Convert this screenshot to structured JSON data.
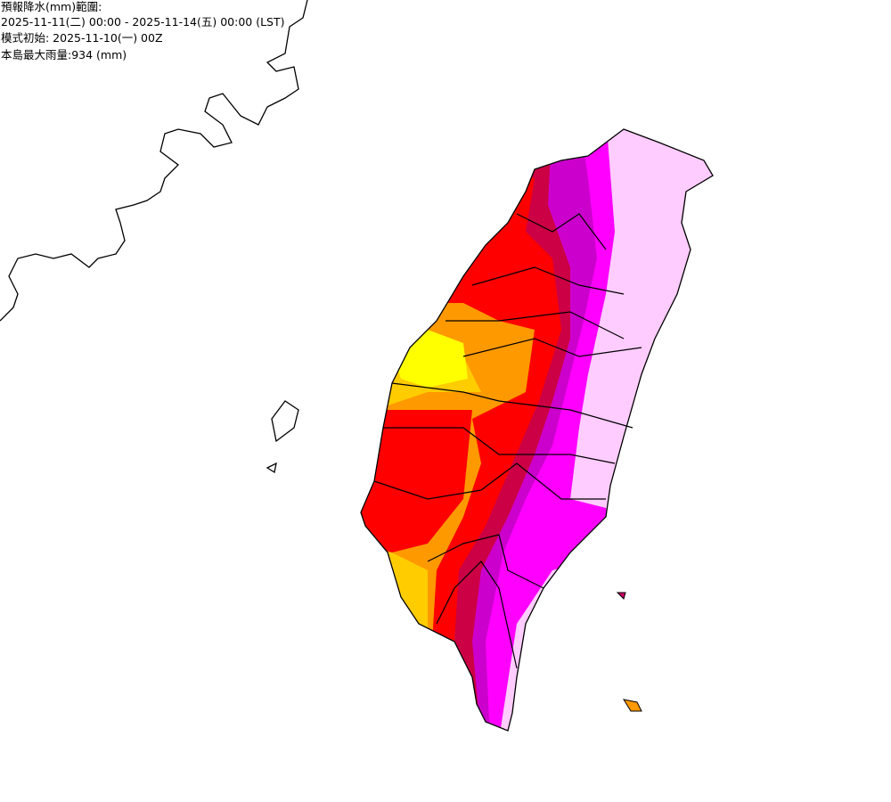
{
  "header": {
    "lines": [
      "預報降水(mm)範圍:",
      "2025-11-11(二) 00:00 - 2025-11-14(五) 00:00 (LST)",
      "模式初始: 2025-11-10(一) 00Z",
      "本島最大雨量:934 (mm)"
    ]
  }
}
